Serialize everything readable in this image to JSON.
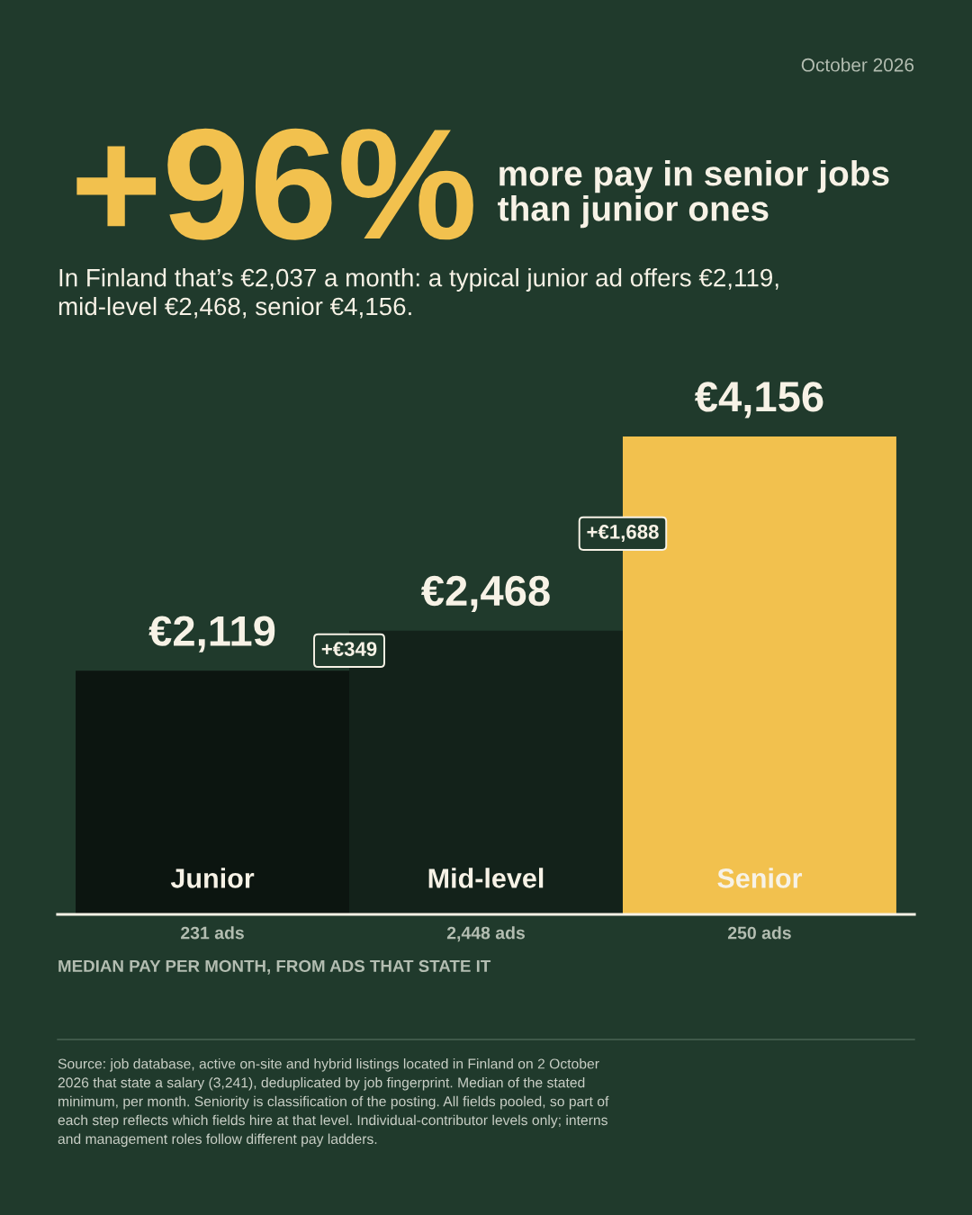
{
  "chart_data": {
    "type": "bar",
    "title": "+96%",
    "subtitle": "more pay in senior jobs than junior ones",
    "categories": [
      "Junior",
      "Mid-level",
      "Senior"
    ],
    "values": [
      2119,
      2468,
      4156
    ],
    "colors": [
      "#0c1510",
      "#13221a",
      "#f2c14e"
    ],
    "value_labels": [
      "€2,119",
      "€2,468",
      "€4,156"
    ],
    "annotations": [
      "October 2026",
      "In Finland that’s €2,037 a month: a typical junior ad offers €2,119, mid-level €2,468, senior €4,156.",
      "+€349",
      "+€1,688",
      "231 ads",
      "2,448 ads",
      "250 ads",
      "MEDIAN PAY PER MONTH, FROM ADS THAT STATE IT",
      "Source: job database, active on-site and hybrid listings located in Finland on 2 October 2026 that state a salary (3,241), deduplicated by job fingerprint. Median of the stated minimum, per month. Seniority is classification of the posting. All fields pooled, so part of each step reflects which fields hire at that level. Individual-contributor levels only; interns and management roles follow different pay ladders."
    ]
  }
}
